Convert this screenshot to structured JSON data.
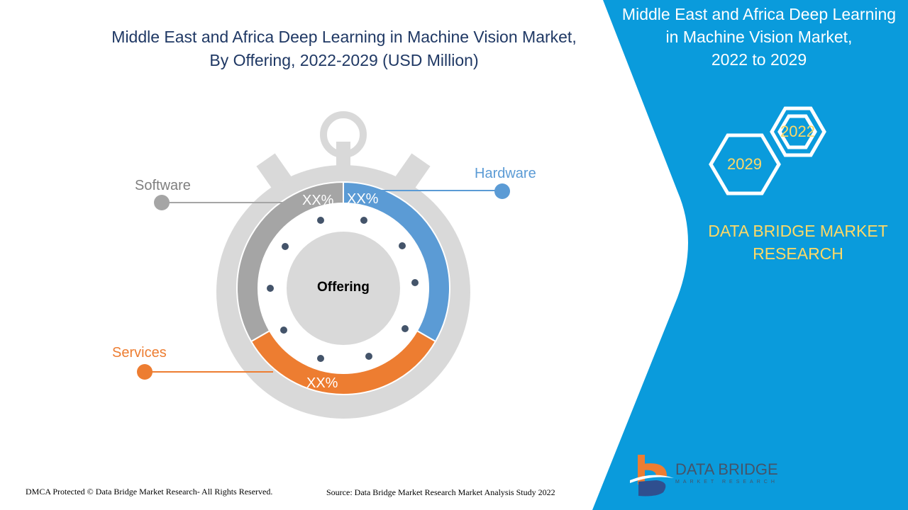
{
  "title": {
    "line1": "Middle East and Africa Deep Learning in Machine Vision Market,",
    "line2": "By Offering, 2022-2029 (USD Million)"
  },
  "side_panel": {
    "title_line1": "Middle East and Africa Deep Learning",
    "title_line2": "in Machine Vision Market,",
    "title_line3": "2022 to 2029",
    "year_start": "2022",
    "year_end": "2029",
    "brand_line1": "DATA BRIDGE MARKET",
    "brand_line2": "RESEARCH",
    "color": "#0a9bdc"
  },
  "diagram": {
    "center_label": "Offering",
    "segments": [
      {
        "name": "Hardware",
        "value_label": "XX%",
        "color": "#5b9bd5"
      },
      {
        "name": "Services",
        "value_label": "XX%",
        "color": "#ed7d31"
      },
      {
        "name": "Software",
        "value_label": "XX%",
        "color": "#a5a5a5"
      }
    ]
  },
  "logo": {
    "text": "DATA BRIDGE",
    "subtext": "MARKET RESEARCH"
  },
  "footer": {
    "copyright": "DMCA Protected © Data Bridge Market Research- All Rights Reserved.",
    "source": "Source: Data Bridge Market Research Market Analysis Study 2022"
  }
}
